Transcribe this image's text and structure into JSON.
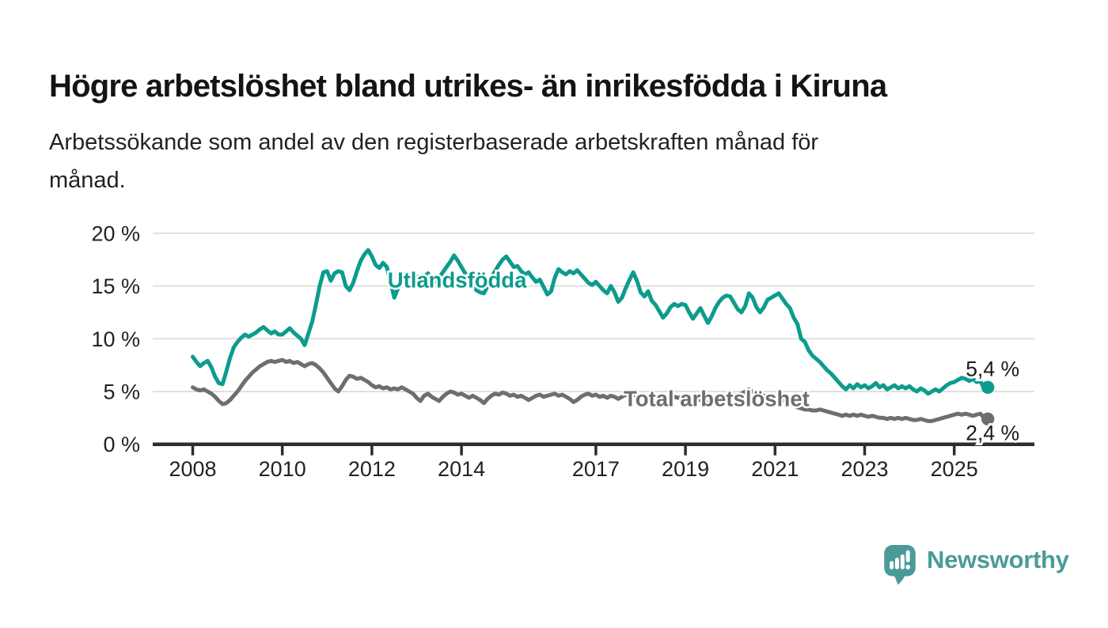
{
  "header": {
    "title": "Högre arbetslöshet bland utrikes- än inrikesfödda i Kiruna",
    "subtitle": "Arbetssökande som andel av den registerbaserade arbetskraften månad för månad.",
    "subtitle_lines": [
      "Arbetssökande som andel av den registerbaserade arbetskraften månad för",
      "månad."
    ]
  },
  "branding": {
    "logo_text": "Newsworthy",
    "logo_icon": "bar-chart-speech-bubble-icon",
    "logo_color": "#4a9b98"
  },
  "colors": {
    "foreign_born_line": "#0c9c8e",
    "total_line": "#6e6d72",
    "axis": "#2d2d2d",
    "grid": "#e0e0e0",
    "axis_text": "#222222",
    "end_label_text": "#1a1a1a",
    "background": "#ffffff"
  },
  "chart_data": {
    "type": "line",
    "title": "Högre arbetslöshet bland utrikes- än inrikesfödda i Kiruna",
    "subtitle": "Arbetssökande som andel av den registerbaserade arbetskraften månad för månad.",
    "x_unit": "month",
    "x_start": "2008-01",
    "x_end": "2025-10",
    "ylim": [
      0,
      20
    ],
    "grid": "horizontal",
    "legend_position": "inline-labels",
    "y_tick_values": [
      0,
      5,
      10,
      15,
      20
    ],
    "y_tick_labels": [
      "0 %",
      "5 %",
      "10 %",
      "15 %",
      "20 %"
    ],
    "x_tick_years": [
      2008,
      2010,
      2012,
      2014,
      2017,
      2019,
      2021,
      2023,
      2025
    ],
    "x_tick_labels": [
      "2008",
      "2010",
      "2012",
      "2014",
      "2017",
      "2019",
      "2021",
      "2023",
      "2025"
    ],
    "series": [
      {
        "name": "Utlandsfödda",
        "color": "#0c9c8e",
        "end_value": 5.4,
        "end_label": "5,4 %",
        "end_label_dx": 6,
        "end_label_dy": -14,
        "label": {
          "x_year": 2012.35,
          "y_value": 14.85
        },
        "values": [
          8.3,
          7.8,
          7.4,
          7.7,
          7.9,
          7.3,
          6.4,
          5.8,
          5.7,
          6.9,
          8.2,
          9.2,
          9.7,
          10.1,
          10.4,
          10.2,
          10.4,
          10.6,
          10.9,
          11.1,
          10.8,
          10.5,
          10.7,
          10.4,
          10.4,
          10.7,
          11.0,
          10.6,
          10.3,
          10.0,
          9.4,
          10.5,
          11.6,
          13.2,
          15.0,
          16.3,
          16.4,
          15.5,
          16.2,
          16.4,
          16.3,
          15.0,
          14.6,
          15.3,
          16.4,
          17.4,
          18.0,
          18.4,
          17.8,
          17.0,
          16.7,
          17.2,
          16.8,
          15.4,
          13.9,
          14.8,
          15.9,
          16.2,
          16.0,
          16.3,
          15.9,
          15.3,
          15.8,
          16.2,
          15.7,
          15.4,
          15.8,
          16.3,
          16.8,
          17.3,
          17.9,
          17.4,
          16.8,
          16.2,
          15.7,
          15.1,
          14.6,
          14.4,
          14.3,
          15.0,
          15.8,
          16.4,
          17.0,
          17.5,
          17.8,
          17.3,
          16.8,
          16.9,
          16.4,
          16.1,
          16.3,
          15.8,
          15.4,
          15.6,
          14.9,
          14.2,
          14.5,
          15.8,
          16.6,
          16.3,
          16.1,
          16.4,
          16.2,
          16.5,
          16.1,
          15.7,
          15.3,
          15.1,
          15.4,
          15.0,
          14.6,
          14.3,
          15.0,
          14.4,
          13.5,
          13.9,
          14.8,
          15.6,
          16.3,
          15.5,
          14.4,
          14.0,
          14.5,
          13.6,
          13.2,
          12.6,
          12.0,
          12.4,
          13.0,
          13.3,
          13.1,
          13.3,
          13.2,
          12.5,
          11.9,
          12.4,
          12.9,
          12.2,
          11.5,
          12.1,
          12.9,
          13.5,
          13.9,
          14.1,
          14.0,
          13.4,
          12.8,
          12.5,
          13.1,
          14.3,
          13.9,
          13.0,
          12.5,
          13.0,
          13.7,
          13.9,
          14.1,
          14.3,
          13.8,
          13.3,
          12.9,
          12.0,
          11.4,
          10.0,
          9.7,
          8.9,
          8.4,
          8.1,
          7.8,
          7.4,
          7.0,
          6.7,
          6.3,
          5.9,
          5.5,
          5.2,
          5.6,
          5.3,
          5.7,
          5.4,
          5.6,
          5.3,
          5.5,
          5.8,
          5.4,
          5.6,
          5.2,
          5.4,
          5.6,
          5.3,
          5.5,
          5.3,
          5.5,
          5.2,
          5.0,
          5.3,
          5.1,
          4.8,
          5.0,
          5.2,
          5.0,
          5.3,
          5.6,
          5.8,
          5.9,
          6.1,
          6.3,
          6.2,
          6.0,
          6.2,
          5.9,
          6.0,
          5.3,
          5.4
        ]
      },
      {
        "name": "Total arbetslöshet",
        "color": "#6e6d72",
        "end_value": 2.4,
        "end_label": "2,4 %",
        "end_label_dx": 6,
        "end_label_dy": 27,
        "label": {
          "x_year": 2017.62,
          "y_value": 3.6
        },
        "values": [
          5.4,
          5.2,
          5.1,
          5.2,
          5.0,
          4.8,
          4.5,
          4.1,
          3.8,
          3.9,
          4.2,
          4.6,
          5.0,
          5.5,
          6.0,
          6.4,
          6.8,
          7.1,
          7.4,
          7.6,
          7.8,
          7.9,
          7.8,
          7.9,
          8.0,
          7.8,
          7.9,
          7.7,
          7.8,
          7.6,
          7.4,
          7.6,
          7.7,
          7.5,
          7.2,
          6.8,
          6.3,
          5.8,
          5.3,
          5.0,
          5.5,
          6.1,
          6.5,
          6.4,
          6.2,
          6.3,
          6.1,
          5.9,
          5.6,
          5.4,
          5.5,
          5.3,
          5.4,
          5.2,
          5.3,
          5.2,
          5.4,
          5.2,
          5.0,
          4.8,
          4.4,
          4.1,
          4.6,
          4.8,
          4.5,
          4.3,
          4.1,
          4.5,
          4.8,
          5.0,
          4.9,
          4.7,
          4.8,
          4.6,
          4.4,
          4.6,
          4.4,
          4.2,
          3.9,
          4.3,
          4.6,
          4.8,
          4.7,
          4.9,
          4.8,
          4.6,
          4.7,
          4.5,
          4.6,
          4.4,
          4.2,
          4.4,
          4.6,
          4.7,
          4.5,
          4.6,
          4.7,
          4.8,
          4.6,
          4.7,
          4.5,
          4.3,
          4.0,
          4.2,
          4.5,
          4.7,
          4.8,
          4.6,
          4.7,
          4.5,
          4.6,
          4.4,
          4.6,
          4.5,
          4.3,
          4.5,
          4.7,
          4.6,
          4.7,
          4.6,
          4.5,
          4.6,
          4.4,
          4.5,
          4.3,
          4.2,
          4.0,
          4.2,
          4.4,
          4.5,
          4.4,
          4.5,
          4.4,
          4.3,
          4.2,
          4.3,
          4.2,
          4.1,
          3.9,
          4.1,
          4.3,
          4.5,
          4.6,
          4.7,
          4.8,
          4.7,
          4.6,
          4.8,
          5.0,
          5.2,
          5.0,
          4.8,
          4.7,
          4.6,
          4.5,
          4.4,
          4.4,
          4.3,
          4.2,
          4.0,
          3.9,
          3.7,
          3.5,
          3.4,
          3.3,
          3.3,
          3.2,
          3.2,
          3.3,
          3.2,
          3.1,
          3.0,
          2.9,
          2.8,
          2.7,
          2.8,
          2.7,
          2.8,
          2.7,
          2.8,
          2.7,
          2.6,
          2.7,
          2.6,
          2.5,
          2.5,
          2.4,
          2.5,
          2.4,
          2.5,
          2.4,
          2.5,
          2.4,
          2.3,
          2.3,
          2.4,
          2.3,
          2.2,
          2.2,
          2.3,
          2.4,
          2.5,
          2.6,
          2.7,
          2.8,
          2.9,
          2.8,
          2.9,
          2.8,
          2.7,
          2.8,
          2.9,
          2.5,
          2.4
        ]
      }
    ]
  }
}
